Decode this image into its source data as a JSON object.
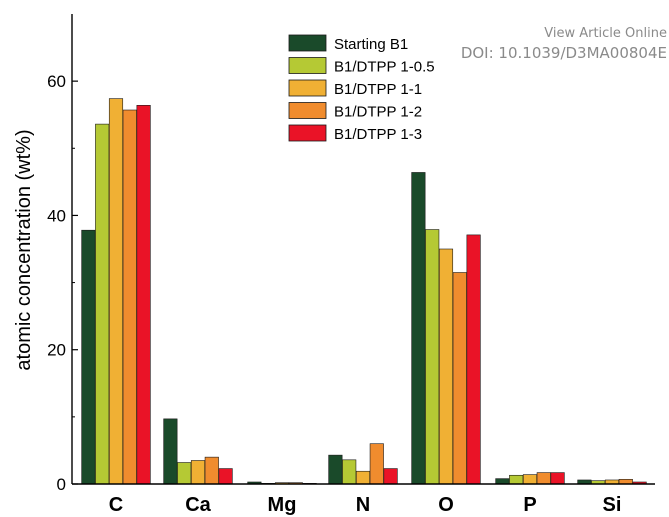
{
  "watermark": {
    "line1": "View Article Online",
    "line2": "DOI: 10.1039/D3MA00804E"
  },
  "chart_data": {
    "type": "bar",
    "title": "",
    "xlabel": "",
    "ylabel": "atomic concentration (wt%)",
    "ylim": [
      0,
      70
    ],
    "yticks": [
      0,
      20,
      40,
      60
    ],
    "grid": false,
    "legend_position": "top-center",
    "categories": [
      "C",
      "Ca",
      "Mg",
      "N",
      "O",
      "P",
      "Si"
    ],
    "series": [
      {
        "name": "Starting B1",
        "color": "#1a4a2a",
        "values": [
          37.8,
          9.7,
          0.3,
          4.3,
          46.4,
          0.8,
          0.6
        ]
      },
      {
        "name": "B1/DTPP 1-0.5",
        "color": "#b5c934",
        "values": [
          53.6,
          3.2,
          0.1,
          3.6,
          37.9,
          1.3,
          0.5
        ]
      },
      {
        "name": "B1/DTPP 1-1",
        "color": "#f0b034",
        "values": [
          57.4,
          3.5,
          0.2,
          1.9,
          35.0,
          1.4,
          0.6
        ]
      },
      {
        "name": "B1/DTPP 1-2",
        "color": "#f08c2e",
        "values": [
          55.7,
          4.0,
          0.2,
          6.0,
          31.5,
          1.7,
          0.7
        ]
      },
      {
        "name": "B1/DTPP 1-3",
        "color": "#ea1327",
        "values": [
          56.4,
          2.3,
          0.1,
          2.3,
          37.1,
          1.7,
          0.3
        ]
      }
    ]
  }
}
